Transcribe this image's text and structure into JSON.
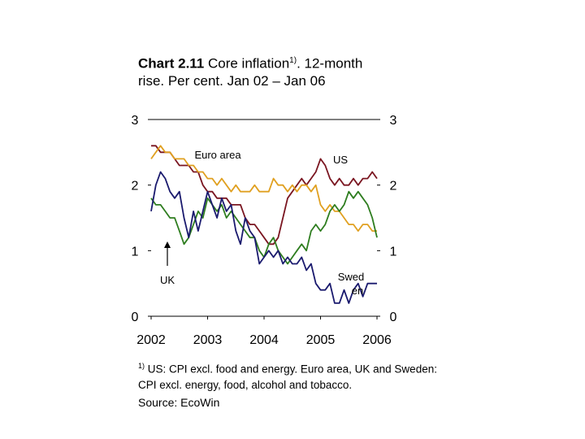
{
  "title": {
    "prefix": "Chart 2.11",
    "main": " Core inflation",
    "sup": "1)",
    "rest": ". 12-month rise. Per cent. Jan 02 – Jan 06"
  },
  "footnote": {
    "sup": "1)",
    "text": " US: CPI excl. food and energy. Euro area, UK and Sweden: CPI excl. energy, food, alcohol and tobacco."
  },
  "source": "Source: EcoWin",
  "colors": {
    "US": "#7a1520",
    "Euro area": "#e0a020",
    "Sweden": "#2e7d1f",
    "UK": "#1a1a6e"
  },
  "chart_data": {
    "type": "line",
    "x_start": "2002-01",
    "x_end": "2006-01",
    "x_ticks": [
      "2002",
      "2003",
      "2004",
      "2005",
      "2006"
    ],
    "y_ticks": [
      "0",
      "1",
      "2",
      "3"
    ],
    "ylim": [
      0,
      3
    ],
    "annotations": {
      "euro": "Euro area",
      "us": "US",
      "uk": "UK",
      "swed1": "Swed",
      "swed2": "en"
    },
    "series": [
      {
        "name": "US",
        "values": [
          2.6,
          2.6,
          2.5,
          2.5,
          2.5,
          2.4,
          2.3,
          2.3,
          2.3,
          2.2,
          2.2,
          2.0,
          1.9,
          1.9,
          1.8,
          1.8,
          1.8,
          1.7,
          1.7,
          1.7,
          1.5,
          1.4,
          1.4,
          1.3,
          1.2,
          1.1,
          1.1,
          1.2,
          1.5,
          1.8,
          1.9,
          2.0,
          2.1,
          2.0,
          2.1,
          2.2,
          2.4,
          2.3,
          2.1,
          2.0,
          2.1,
          2.0,
          2.0,
          2.1,
          2.0,
          2.1,
          2.1,
          2.2,
          2.1
        ]
      },
      {
        "name": "Euro area",
        "values": [
          2.4,
          2.5,
          2.6,
          2.5,
          2.5,
          2.4,
          2.4,
          2.4,
          2.3,
          2.3,
          2.2,
          2.2,
          2.1,
          2.1,
          2.0,
          2.1,
          2.0,
          1.9,
          2.0,
          1.9,
          1.9,
          1.9,
          2.0,
          1.9,
          1.9,
          1.9,
          2.1,
          2.0,
          2.0,
          1.9,
          2.0,
          1.9,
          2.0,
          2.0,
          1.9,
          2.0,
          1.7,
          1.6,
          1.7,
          1.6,
          1.6,
          1.5,
          1.4,
          1.4,
          1.3,
          1.4,
          1.4,
          1.3,
          1.3
        ]
      },
      {
        "name": "Sweden",
        "values": [
          1.8,
          1.7,
          1.7,
          1.6,
          1.5,
          1.5,
          1.3,
          1.1,
          1.2,
          1.4,
          1.6,
          1.5,
          1.8,
          1.7,
          1.6,
          1.7,
          1.5,
          1.6,
          1.5,
          1.4,
          1.3,
          1.2,
          1.2,
          1.0,
          0.9,
          1.1,
          1.2,
          1.0,
          0.9,
          0.8,
          0.9,
          1.0,
          1.1,
          1.0,
          1.3,
          1.4,
          1.3,
          1.4,
          1.6,
          1.7,
          1.6,
          1.7,
          1.9,
          1.8,
          1.9,
          1.8,
          1.7,
          1.5,
          1.2
        ]
      },
      {
        "name": "UK",
        "values": [
          1.6,
          2.0,
          2.2,
          2.1,
          1.9,
          1.8,
          1.9,
          1.5,
          1.2,
          1.6,
          1.3,
          1.6,
          1.9,
          1.7,
          1.5,
          1.8,
          1.6,
          1.7,
          1.3,
          1.1,
          1.5,
          1.3,
          1.2,
          0.8,
          0.9,
          1.0,
          0.9,
          1.0,
          0.8,
          0.9,
          0.8,
          0.8,
          0.9,
          0.7,
          0.8,
          0.5,
          0.4,
          0.4,
          0.5,
          0.2,
          0.2,
          0.4,
          0.2,
          0.4,
          0.5,
          0.3,
          0.5,
          0.5,
          0.5
        ]
      }
    ]
  }
}
